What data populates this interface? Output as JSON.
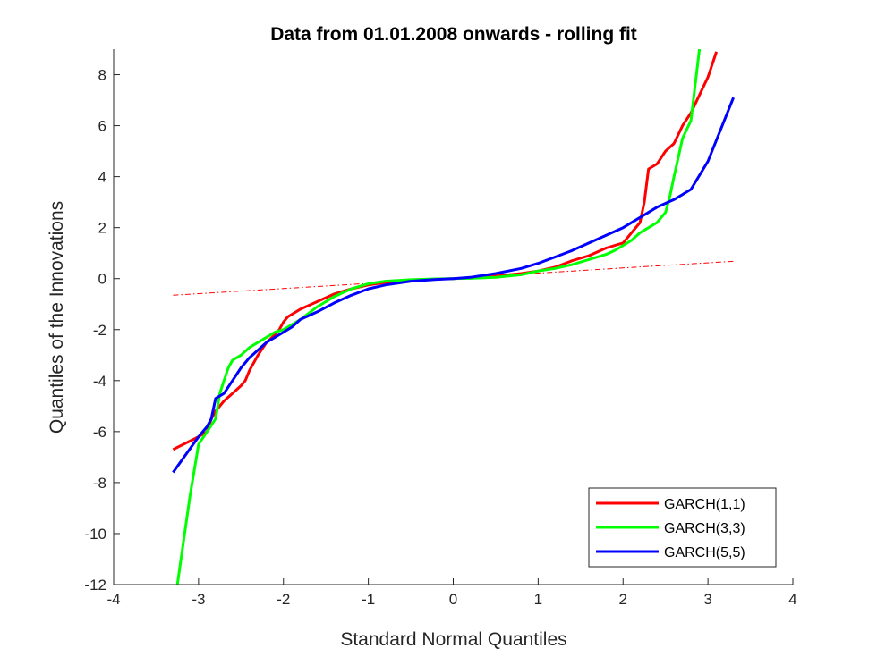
{
  "chart_data": {
    "type": "line",
    "title": "Data from 01.01.2008 onwards - rolling fit",
    "xlabel": "Standard Normal Quantiles",
    "ylabel": "Quantiles of the Innovations",
    "xlim": [
      -4,
      4
    ],
    "ylim": [
      -12,
      9
    ],
    "xticks": [
      -4,
      -3,
      -2,
      -1,
      0,
      1,
      2,
      3,
      4
    ],
    "xtick_labels": [
      "-4",
      "-3",
      "-2",
      "-1",
      "0",
      "1",
      "2",
      "3",
      "4"
    ],
    "yticks": [
      -12,
      -10,
      -8,
      -6,
      -4,
      -2,
      0,
      2,
      4,
      6,
      8
    ],
    "ytick_labels": [
      "-12",
      "-10",
      "-8",
      "-6",
      "-4",
      "-2",
      "0",
      "2",
      "4",
      "6",
      "8"
    ],
    "grid": false,
    "legend_position": "bottom-right",
    "reference_line": {
      "style": "dash-dot",
      "color": "#ff0000",
      "x": [
        -3.3,
        3.3
      ],
      "y": [
        -0.65,
        0.68
      ]
    },
    "series": [
      {
        "name": "GARCH(1,1)",
        "color": "#ff0000",
        "x": [
          -3.3,
          -3.0,
          -2.9,
          -2.85,
          -2.8,
          -2.7,
          -2.6,
          -2.5,
          -2.45,
          -2.4,
          -2.3,
          -2.2,
          -2.1,
          -2.05,
          -2.0,
          -1.95,
          -1.9,
          -1.8,
          -1.6,
          -1.4,
          -1.2,
          -1.0,
          -0.8,
          -0.5,
          -0.2,
          0.0,
          0.2,
          0.5,
          0.8,
          1.0,
          1.2,
          1.4,
          1.6,
          1.8,
          2.0,
          2.1,
          2.2,
          2.25,
          2.3,
          2.4,
          2.5,
          2.6,
          2.7,
          2.8,
          2.9,
          3.0,
          3.1
        ],
        "y": [
          -6.7,
          -6.2,
          -6.0,
          -5.5,
          -5.2,
          -4.8,
          -4.5,
          -4.2,
          -4.0,
          -3.6,
          -3.0,
          -2.5,
          -2.2,
          -2.0,
          -1.7,
          -1.5,
          -1.4,
          -1.2,
          -0.9,
          -0.6,
          -0.4,
          -0.25,
          -0.15,
          -0.06,
          -0.02,
          0.0,
          0.03,
          0.1,
          0.2,
          0.3,
          0.45,
          0.7,
          0.9,
          1.2,
          1.4,
          1.8,
          2.2,
          3.0,
          4.3,
          4.5,
          5.0,
          5.3,
          6.0,
          6.5,
          7.2,
          7.9,
          8.9
        ]
      },
      {
        "name": "GARCH(3,3)",
        "color": "#00ff00",
        "x": [
          -3.25,
          -3.1,
          -3.0,
          -2.9,
          -2.8,
          -2.75,
          -2.7,
          -2.65,
          -2.6,
          -2.5,
          -2.4,
          -2.3,
          -2.2,
          -2.1,
          -2.0,
          -1.8,
          -1.6,
          -1.4,
          -1.2,
          -1.0,
          -0.8,
          -0.5,
          -0.2,
          0.0,
          0.2,
          0.5,
          0.8,
          1.0,
          1.2,
          1.4,
          1.6,
          1.8,
          1.9,
          2.0,
          2.1,
          2.2,
          2.3,
          2.4,
          2.5,
          2.55,
          2.6,
          2.7,
          2.8,
          2.9
        ],
        "y": [
          -12.0,
          -8.5,
          -6.5,
          -6.0,
          -5.5,
          -4.5,
          -4.0,
          -3.5,
          -3.2,
          -3.0,
          -2.7,
          -2.5,
          -2.3,
          -2.1,
          -2.0,
          -1.6,
          -1.1,
          -0.7,
          -0.4,
          -0.2,
          -0.1,
          -0.04,
          -0.01,
          0.0,
          0.01,
          0.05,
          0.15,
          0.3,
          0.4,
          0.55,
          0.75,
          0.95,
          1.1,
          1.3,
          1.5,
          1.8,
          2.0,
          2.2,
          2.6,
          3.2,
          4.0,
          5.5,
          6.2,
          9.0
        ]
      },
      {
        "name": "GARCH(5,5)",
        "color": "#0000ff",
        "x": [
          -3.3,
          -3.0,
          -2.9,
          -2.85,
          -2.8,
          -2.7,
          -2.6,
          -2.5,
          -2.4,
          -2.3,
          -2.2,
          -2.1,
          -2.0,
          -1.9,
          -1.8,
          -1.6,
          -1.4,
          -1.2,
          -1.0,
          -0.8,
          -0.5,
          -0.2,
          0.0,
          0.2,
          0.5,
          0.8,
          1.0,
          1.2,
          1.4,
          1.6,
          1.8,
          2.0,
          2.2,
          2.4,
          2.6,
          2.7,
          2.8,
          3.0,
          3.3
        ],
        "y": [
          -7.6,
          -6.2,
          -5.8,
          -5.5,
          -4.7,
          -4.5,
          -4.0,
          -3.5,
          -3.1,
          -2.8,
          -2.5,
          -2.3,
          -2.1,
          -1.9,
          -1.6,
          -1.3,
          -0.95,
          -0.65,
          -0.4,
          -0.25,
          -0.1,
          -0.03,
          0.0,
          0.05,
          0.2,
          0.4,
          0.6,
          0.85,
          1.1,
          1.4,
          1.7,
          2.0,
          2.4,
          2.8,
          3.1,
          3.3,
          3.5,
          4.6,
          7.1
        ]
      }
    ]
  }
}
